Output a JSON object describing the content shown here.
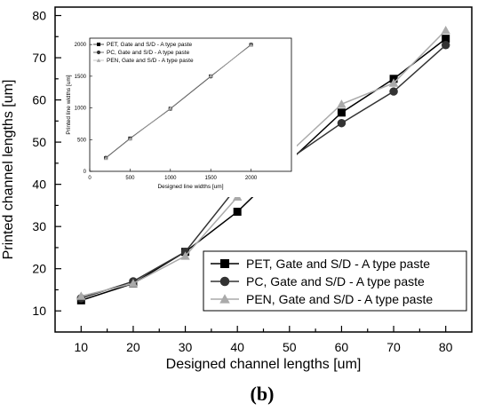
{
  "chart_data": [
    {
      "type": "line",
      "xlabel": "Designed channel lengths [um]",
      "ylabel": "Printed channel lengths [um]",
      "xlim": [
        5,
        85
      ],
      "ylim": [
        5,
        82
      ],
      "xticks": [
        10,
        20,
        30,
        40,
        50,
        60,
        70,
        80
      ],
      "yticks": [
        10,
        20,
        30,
        40,
        50,
        60,
        70,
        80
      ],
      "x": [
        10,
        20,
        30,
        40,
        50,
        60,
        70,
        80
      ],
      "legend_position": "bottom-right",
      "series": [
        {
          "name": "PET, Gate and S/D - A type paste",
          "marker": "square",
          "color": "#000000",
          "values": [
            12.5,
            16.5,
            24,
            33.5,
            45.5,
            57,
            65,
            74.5
          ]
        },
        {
          "name": "PC, Gate and S/D - A type paste",
          "marker": "circle",
          "color": "#333333",
          "values": [
            13,
            17,
            24,
            39.5,
            46,
            54.5,
            62,
            73
          ]
        },
        {
          "name": "PEN, Gate and S/D - A type paste",
          "marker": "triangle",
          "color": "#aaaaaa",
          "values": [
            13.5,
            16.5,
            23,
            37,
            47.5,
            59,
            64,
            76.5
          ]
        }
      ]
    },
    {
      "type": "line",
      "xlabel": "Designed line widths [um]",
      "ylabel": "Printed line widths [um]",
      "xlim": [
        0,
        2500
      ],
      "ylim": [
        0,
        2100
      ],
      "xticks": [
        0,
        500,
        1000,
        1500,
        2000
      ],
      "yticks": [
        0,
        500,
        1000,
        1500,
        2000
      ],
      "x": [
        200,
        500,
        1000,
        1500,
        2000
      ],
      "legend_position": "top-left",
      "series": [
        {
          "name": "PET, Gate and S/D - A type paste",
          "marker": "square",
          "color": "#000000",
          "values": [
            210,
            520,
            990,
            1500,
            1995
          ]
        },
        {
          "name": "PC, Gate and S/D - A type paste",
          "marker": "circle",
          "color": "#333333",
          "values": [
            215,
            515,
            985,
            1495,
            2000
          ]
        },
        {
          "name": "PEN, Gate and S/D - A type paste",
          "marker": "triangle",
          "color": "#aaaaaa",
          "values": [
            205,
            510,
            995,
            1505,
            1990
          ]
        }
      ]
    }
  ],
  "panel_label": "(b)"
}
